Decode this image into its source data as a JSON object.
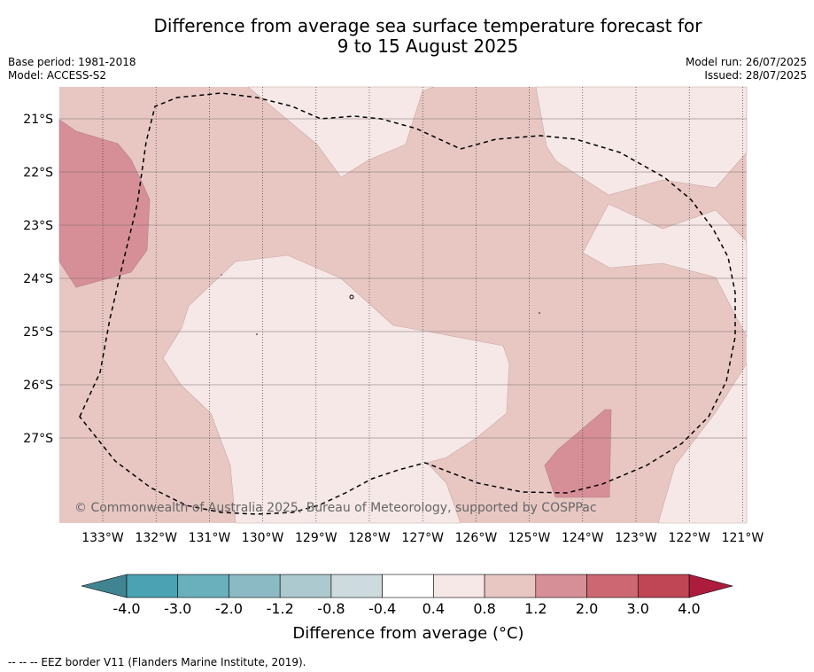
{
  "title_line1": "Difference from average sea surface temperature forecast for",
  "title_line2": "9 to 15 August 2025",
  "base_period": "Base period: 1981-2018",
  "model": "Model: ACCESS-S2",
  "model_run": "Model run: 26/07/2025",
  "issued": "Issued: 28/07/2025",
  "copyright": "© Commonwealth of Australia 2025, Bureau of Meteorology, supported by COSPPac",
  "lat_labels": [
    "21°S",
    "22°S",
    "23°S",
    "24°S",
    "25°S",
    "26°S",
    "27°S"
  ],
  "lon_labels": [
    "133°W",
    "132°W",
    "131°W",
    "130°W",
    "129°W",
    "128°W",
    "127°W",
    "126°W",
    "125°W",
    "124°W",
    "123°W",
    "122°W",
    "121°W"
  ],
  "colorbar": {
    "ticks": [
      "-4.0",
      "-3.0",
      "-2.0",
      "-1.2",
      "-0.8",
      "-0.4",
      "0.4",
      "0.8",
      "1.2",
      "2.0",
      "3.0",
      "4.0"
    ],
    "colors": [
      "#4aa2b2",
      "#6aafbc",
      "#8bbac4",
      "#abc9ce",
      "#cddbdf",
      "#ffffff",
      "#f5e8e7",
      "#e8c7c3",
      "#d78f97",
      "#cd6872",
      "#c04656"
    ],
    "under_color": "#3f8490",
    "over_color": "#ad1c3c",
    "label": "Difference from average (°C)"
  },
  "legend_note": "--  --  -- EEZ border V11 (Flanders Marine Institute, 2019).",
  "map_colors": {
    "band_0_4_0_8": "#f5e8e7",
    "band_0_8_1_2": "#e8c7c3",
    "band_1_2_2_0": "#d78f97"
  }
}
